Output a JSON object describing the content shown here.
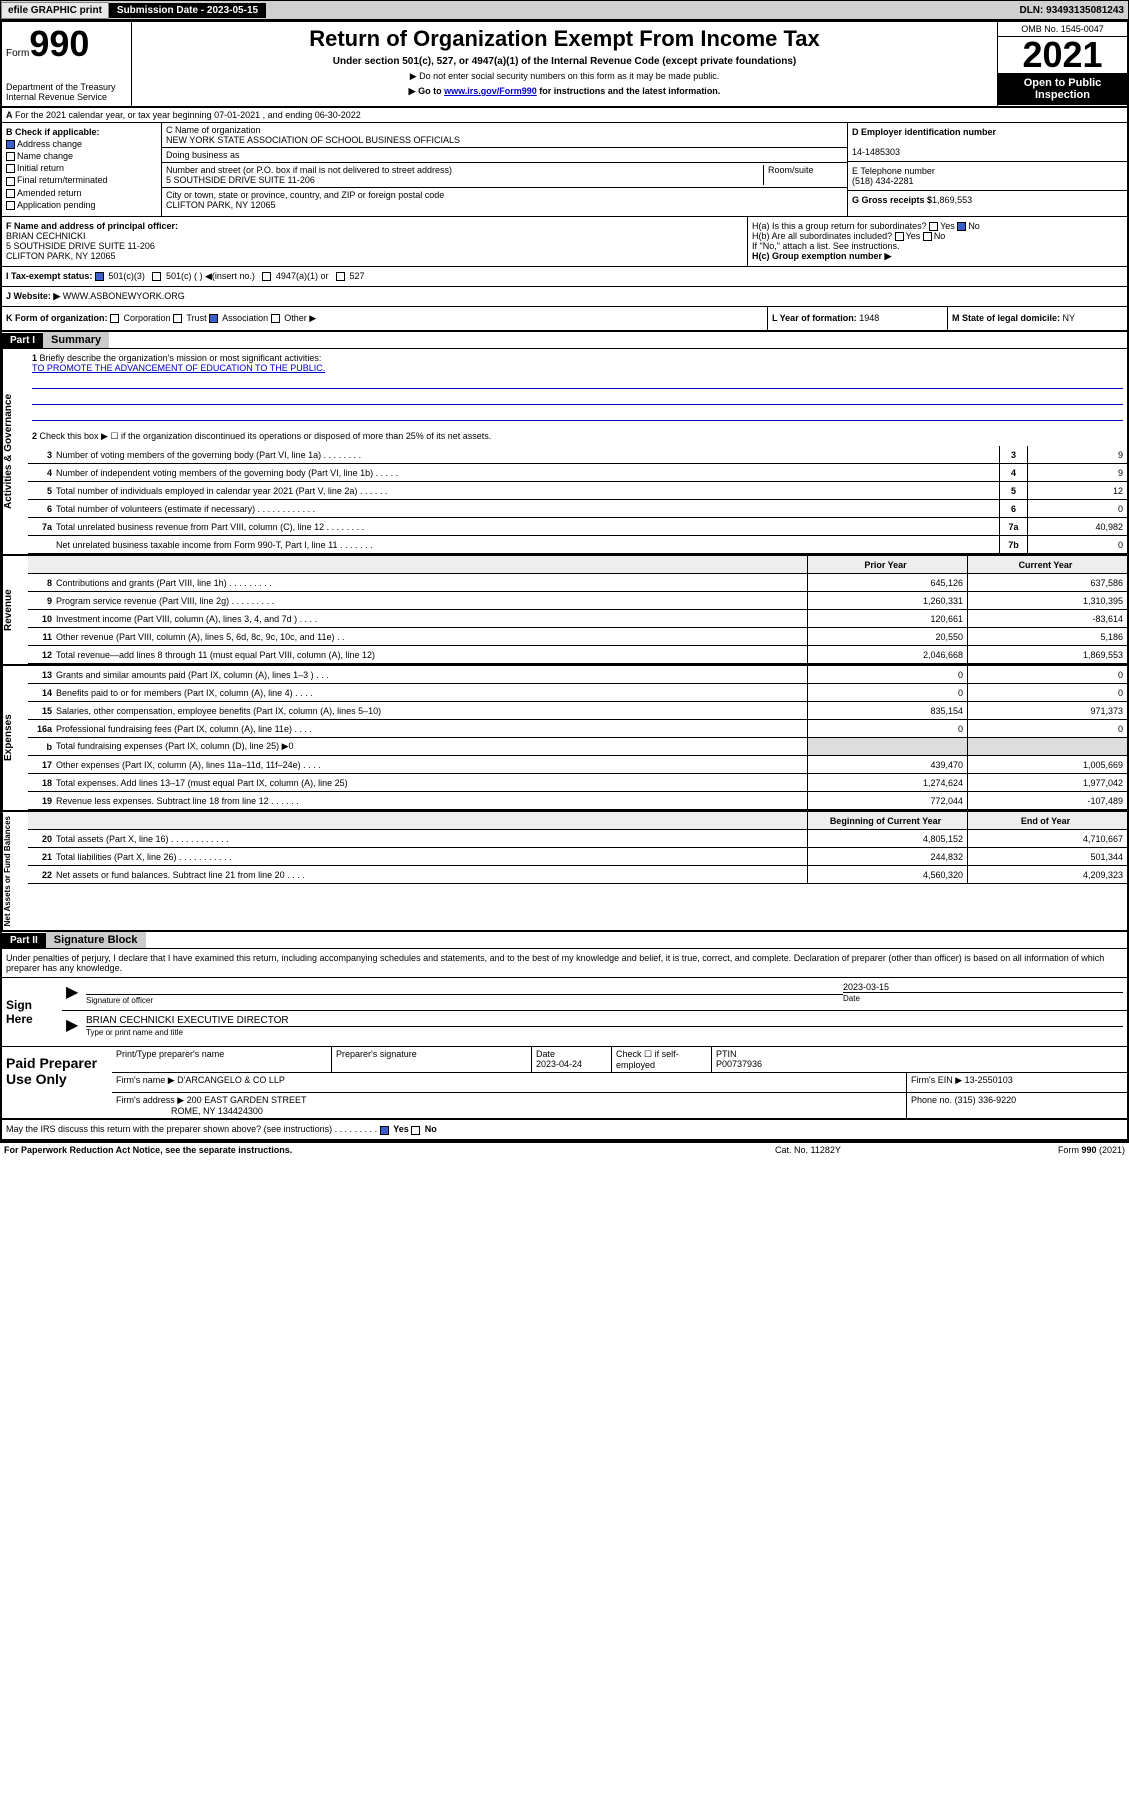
{
  "topbar": {
    "efile": "efile GRAPHIC print",
    "subdate_lbl": "Submission Date - 2023-05-15",
    "dln": "DLN: 93493135081243"
  },
  "header": {
    "form_word": "Form",
    "form_num": "990",
    "dept": "Department of the Treasury\nInternal Revenue Service",
    "title": "Return of Organization Exempt From Income Tax",
    "sub1": "Under section 501(c), 527, or 4947(a)(1) of the Internal Revenue Code (except private foundations)",
    "sub2": "▶ Do not enter social security numbers on this form as it may be made public.",
    "sub3_pre": "▶ Go to ",
    "sub3_link": "www.irs.gov/Form990",
    "sub3_post": " for instructions and the latest information.",
    "omb": "OMB No. 1545-0047",
    "year": "2021",
    "open": "Open to Public Inspection"
  },
  "line_a": "For the 2021 calendar year, or tax year beginning 07-01-2021   , and ending 06-30-2022",
  "col_b": {
    "hdr": "B Check if applicable:",
    "addr": "Address change",
    "name": "Name change",
    "init": "Initial return",
    "final": "Final return/terminated",
    "amend": "Amended return",
    "app": "Application pending"
  },
  "col_c": {
    "lbl": "C Name of organization",
    "name": "NEW YORK STATE ASSOCIATION OF SCHOOL BUSINESS OFFICIALS",
    "dba_lbl": "Doing business as",
    "street_lbl": "Number and street (or P.O. box if mail is not delivered to street address)",
    "street": "5 SOUTHSIDE DRIVE SUITE 11-206",
    "room_lbl": "Room/suite",
    "city_lbl": "City or town, state or province, country, and ZIP or foreign postal code",
    "city": "CLIFTON PARK, NY  12065"
  },
  "col_d": {
    "ein_lbl": "D Employer identification number",
    "ein": "14-1485303",
    "tel_lbl": "E Telephone number",
    "tel": "(518) 434-2281",
    "gross_lbl": "G Gross receipts $",
    "gross": "1,869,553"
  },
  "line_f": {
    "lbl": "F  Name and address of principal officer:",
    "name": "BRIAN CECHNICKI",
    "addr1": "5 SOUTHSIDE DRIVE SUITE 11-206",
    "addr2": "CLIFTON PARK, NY  12065"
  },
  "line_h": {
    "ha": "H(a)  Is this a group return for subordinates?",
    "hb": "H(b)  Are all subordinates included?",
    "hb_note": "If \"No,\" attach a list. See instructions.",
    "hc": "H(c)  Group exemption number ▶",
    "yes": "Yes",
    "no": "No"
  },
  "line_i": {
    "lbl": "I   Tax-exempt status:",
    "o1": "501(c)(3)",
    "o2": "501(c) (  ) ◀(insert no.)",
    "o3": "4947(a)(1) or",
    "o4": "527"
  },
  "line_j": {
    "lbl": "J   Website: ▶",
    "val": "WWW.ASBONEWYORK.ORG"
  },
  "line_k": {
    "lbl": "K Form of organization:",
    "corp": "Corporation",
    "trust": "Trust",
    "assoc": "Association",
    "other": "Other ▶"
  },
  "line_l": {
    "lbl": "L Year of formation:",
    "val": "1948"
  },
  "line_m": {
    "lbl": "M State of legal domicile:",
    "val": "NY"
  },
  "part1": {
    "hdr": "Part I",
    "title": "Summary"
  },
  "summary": {
    "q1": "Briefly describe the organization's mission or most significant activities:",
    "q1_ans": "TO PROMOTE THE ADVANCEMENT OF EDUCATION TO THE PUBLIC.",
    "q2": "Check this box ▶ ☐  if the organization discontinued its operations or disposed of more than 25% of its net assets.",
    "rows_ag": [
      {
        "n": "3",
        "t": "Number of voting members of the governing body (Part VI, line 1a)   .    .    .    .    .    .    .    .",
        "b": "3",
        "v": "9"
      },
      {
        "n": "4",
        "t": "Number of independent voting members of the governing body (Part VI, line 1b)   .    .    .    .    .",
        "b": "4",
        "v": "9"
      },
      {
        "n": "5",
        "t": "Total number of individuals employed in calendar year 2021 (Part V, line 2a)   .    .    .    .    .    .",
        "b": "5",
        "v": "12"
      },
      {
        "n": "6",
        "t": "Total number of volunteers (estimate if necessary)   .    .    .    .    .    .    .    .    .    .    .    .",
        "b": "6",
        "v": "0"
      },
      {
        "n": "7a",
        "t": "Total unrelated business revenue from Part VIII, column (C), line 12   .    .    .    .    .    .    .    .",
        "b": "7a",
        "v": "40,982"
      },
      {
        "n": "",
        "t": "Net unrelated business taxable income from Form 990-T, Part I, line 11   .    .    .    .    .    .    .",
        "b": "7b",
        "v": "0"
      }
    ],
    "col_prior": "Prior Year",
    "col_curr": "Current Year",
    "col_begin": "Beginning of Current Year",
    "col_end": "End of Year",
    "revenue": [
      {
        "n": "8",
        "t": "Contributions and grants (Part VIII, line 1h)   .    .    .    .    .    .    .    .    .",
        "p": "645,126",
        "c": "637,586"
      },
      {
        "n": "9",
        "t": "Program service revenue (Part VIII, line 2g)   .    .    .    .    .    .    .    .    .",
        "p": "1,260,331",
        "c": "1,310,395"
      },
      {
        "n": "10",
        "t": "Investment income (Part VIII, column (A), lines 3, 4, and 7d )   .    .    .    .",
        "p": "120,661",
        "c": "-83,614"
      },
      {
        "n": "11",
        "t": "Other revenue (Part VIII, column (A), lines 5, 6d, 8c, 9c, 10c, and 11e)   .    .",
        "p": "20,550",
        "c": "5,186"
      },
      {
        "n": "12",
        "t": "Total revenue—add lines 8 through 11 (must equal Part VIII, column (A), line 12)",
        "p": "2,046,668",
        "c": "1,869,553"
      }
    ],
    "expenses": [
      {
        "n": "13",
        "t": "Grants and similar amounts paid (Part IX, column (A), lines 1–3 )   .    .    .",
        "p": "0",
        "c": "0"
      },
      {
        "n": "14",
        "t": "Benefits paid to or for members (Part IX, column (A), line 4)   .    .    .    .",
        "p": "0",
        "c": "0"
      },
      {
        "n": "15",
        "t": "Salaries, other compensation, employee benefits (Part IX, column (A), lines 5–10)",
        "p": "835,154",
        "c": "971,373"
      },
      {
        "n": "16a",
        "t": "Professional fundraising fees (Part IX, column (A), line 11e)   .    .    .    .",
        "p": "0",
        "c": "0"
      },
      {
        "n": "b",
        "t": "Total fundraising expenses (Part IX, column (D), line 25) ▶0",
        "p": "",
        "c": "",
        "shade": true
      },
      {
        "n": "17",
        "t": "Other expenses (Part IX, column (A), lines 11a–11d, 11f–24e)   .    .    .    .",
        "p": "439,470",
        "c": "1,005,669"
      },
      {
        "n": "18",
        "t": "Total expenses. Add lines 13–17 (must equal Part IX, column (A), line 25)",
        "p": "1,274,624",
        "c": "1,977,042"
      },
      {
        "n": "19",
        "t": "Revenue less expenses. Subtract line 18 from line 12   .    .    .    .    .    .",
        "p": "772,044",
        "c": "-107,489"
      }
    ],
    "netassets": [
      {
        "n": "20",
        "t": "Total assets (Part X, line 16)   .    .    .    .    .    .    .    .    .    .    .    .",
        "p": "4,805,152",
        "c": "4,710,667"
      },
      {
        "n": "21",
        "t": "Total liabilities (Part X, line 26)   .    .    .    .    .    .    .    .    .    .    .",
        "p": "244,832",
        "c": "501,344"
      },
      {
        "n": "22",
        "t": "Net assets or fund balances. Subtract line 21 from line 20   .    .    .    .",
        "p": "4,560,320",
        "c": "4,209,323"
      }
    ]
  },
  "part2": {
    "hdr": "Part II",
    "title": "Signature Block"
  },
  "sig": {
    "intro": "Under penalties of perjury, I declare that I have examined this return, including accompanying schedules and statements, and to the best of my knowledge and belief, it is true, correct, and complete. Declaration of preparer (other than officer) is based on all information of which preparer has any knowledge.",
    "sign_here": "Sign Here",
    "sig_off": "Signature of officer",
    "date_lbl": "Date",
    "date_val": "2023-03-15",
    "name": "BRIAN CECHNICKI EXECUTIVE DIRECTOR",
    "name_lbl": "Type or print name and title"
  },
  "prep": {
    "title": "Paid Preparer Use Only",
    "h1": "Print/Type preparer's name",
    "h2": "Preparer's signature",
    "h3": "Date",
    "h3v": "2023-04-24",
    "h4": "Check ☐ if self-employed",
    "h5": "PTIN",
    "h5v": "P00737936",
    "firm_lbl": "Firm's name    ▶",
    "firm": "D'ARCANGELO & CO LLP",
    "ein_lbl": "Firm's EIN ▶",
    "ein": "13-2550103",
    "addr_lbl": "Firm's address ▶",
    "addr1": "200 EAST GARDEN STREET",
    "addr2": "ROME, NY  134424300",
    "phone_lbl": "Phone no.",
    "phone": "(315) 336-9220"
  },
  "may_discuss": "May the IRS discuss this return with the preparer shown above? (see instructions)   .    .    .    .    .    .    .    .    .",
  "footer": {
    "left": "For Paperwork Reduction Act Notice, see the separate instructions.",
    "mid": "Cat. No. 11282Y",
    "right": "Form 990 (2021)"
  },
  "labels": {
    "vert_ag": "Activities & Governance",
    "vert_rev": "Revenue",
    "vert_exp": "Expenses",
    "vert_na": "Net Assets or Fund Balances"
  }
}
